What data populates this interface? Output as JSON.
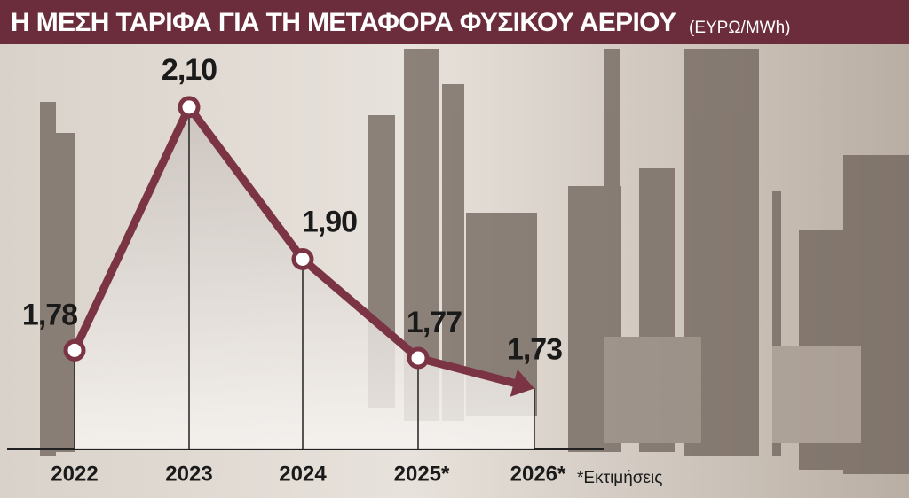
{
  "chart_data": {
    "type": "line",
    "title": "Η ΜΕΣΗ ΤΑΡΙΦΑ ΓΙΑ ΤΗ ΜΕΤΑΦΟΡΑ ΦΥΣΙΚΟΥ ΑΕΡΙΟΥ",
    "subtitle": "(ΕΥΡΩ/MWh)",
    "annotation": "*Εκτιμήσεις",
    "categories": [
      "2022",
      "2023",
      "2024",
      "2025*",
      "2026*"
    ],
    "values": [
      1.78,
      2.1,
      1.9,
      1.77,
      1.73
    ],
    "value_labels": [
      "1,78",
      "2,10",
      "1,90",
      "1,77",
      "1,73"
    ],
    "color": "#7b3444",
    "ylim": [
      1.65,
      2.2
    ]
  }
}
